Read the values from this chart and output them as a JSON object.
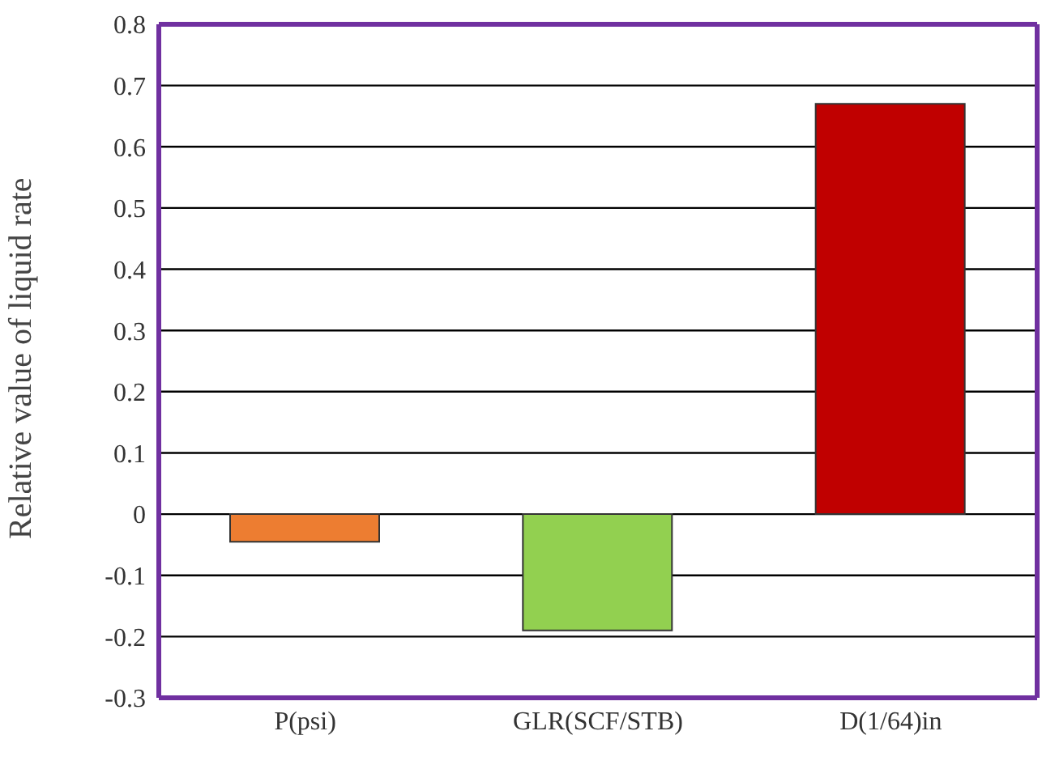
{
  "chart_data": {
    "type": "bar",
    "ylabel": "Relative value of liquid rate",
    "categories": [
      "P(psi)",
      "GLR(SCF/STB)",
      "D(1/64)in"
    ],
    "values": [
      -0.045,
      -0.19,
      0.67
    ],
    "colors": [
      "#ed7d31",
      "#92d050",
      "#c00000"
    ],
    "ylim": [
      -0.3,
      0.8
    ],
    "yticks": [
      -0.3,
      -0.2,
      -0.1,
      0,
      0.1,
      0.2,
      0.3,
      0.4,
      0.5,
      0.6,
      0.7,
      0.8
    ],
    "grid": "y",
    "legend": false
  }
}
